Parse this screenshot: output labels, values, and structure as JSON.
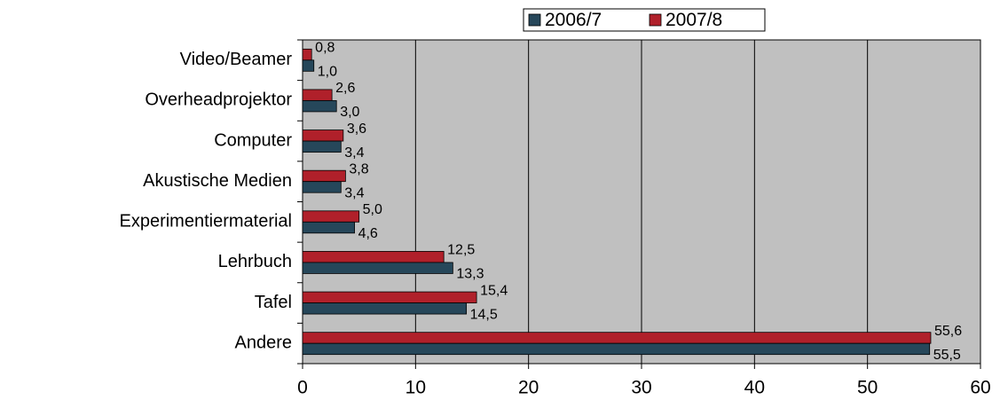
{
  "chart_data": {
    "type": "hbar",
    "categories": [
      "Video/Beamer",
      "Overheadprojektor",
      "Computer",
      "Akustische Medien",
      "Experimentiermaterial",
      "Lehrbuch",
      "Tafel",
      "Andere"
    ],
    "series": [
      {
        "name": "2006/7",
        "color": "#26475a",
        "values": [
          1.0,
          3.0,
          3.4,
          3.4,
          4.6,
          13.3,
          14.5,
          55.5
        ],
        "value_labels": [
          "1,0",
          "3,0",
          "3,4",
          "3,4",
          "4,6",
          "13,3",
          "14,5",
          "55,5"
        ]
      },
      {
        "name": "2007/8",
        "color": "#b0202a",
        "values": [
          0.8,
          2.6,
          3.6,
          3.8,
          5.0,
          12.5,
          15.4,
          55.6
        ],
        "value_labels": [
          "0,8",
          "2,6",
          "3,6",
          "3,8",
          "5,0",
          "12,5",
          "15,4",
          "55,6"
        ]
      }
    ],
    "xlim": [
      0,
      60
    ],
    "xticks": [
      0,
      10,
      20,
      30,
      40,
      50,
      60
    ],
    "grid": true,
    "legend": "top"
  }
}
